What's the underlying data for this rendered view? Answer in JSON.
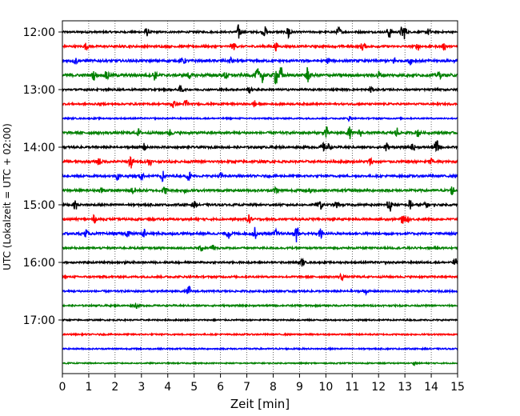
{
  "chart_data": {
    "type": "line",
    "title": "",
    "xlabel": "Zeit  [min]",
    "ylabel": "UTC (Lokalzeit = UTC + 02:00)",
    "xlim": [
      0,
      15
    ],
    "x_ticks": [
      "0",
      "1",
      "2",
      "3",
      "4",
      "5",
      "6",
      "7",
      "8",
      "9",
      "10",
      "11",
      "12",
      "13",
      "14",
      "15"
    ],
    "y_ticks": [
      "12:00",
      "13:00",
      "14:00",
      "15:00",
      "16:00",
      "17:00"
    ],
    "grid": "vertical dotted",
    "trace_interval_min": 15,
    "trace_colors": [
      "#000000",
      "#ff0000",
      "#0000ff",
      "#008000"
    ],
    "series": [
      {
        "start": "12:00",
        "color": "#000000",
        "noise": 0.08,
        "events": [
          [
            3.2,
            0.35
          ],
          [
            6.7,
            0.7
          ],
          [
            7.7,
            0.45
          ],
          [
            8.6,
            0.9
          ],
          [
            10.5,
            0.45
          ],
          [
            12.4,
            0.6
          ],
          [
            12.9,
            0.5
          ],
          [
            13.0,
            0.5
          ],
          [
            13.9,
            0.3
          ]
        ]
      },
      {
        "start": "12:15",
        "color": "#ff0000",
        "noise": 0.09,
        "events": [
          [
            0.9,
            0.3
          ],
          [
            6.5,
            0.3
          ],
          [
            8.1,
            0.35
          ],
          [
            11.4,
            0.4
          ],
          [
            13.5,
            0.3
          ],
          [
            14.5,
            0.3
          ]
        ]
      },
      {
        "start": "12:30",
        "color": "#0000ff",
        "noise": 0.1,
        "events": [
          [
            0.5,
            0.3
          ],
          [
            4.6,
            0.3
          ],
          [
            6.4,
            0.3
          ],
          [
            10.1,
            0.3
          ],
          [
            12.6,
            0.3
          ],
          [
            13.2,
            0.3
          ]
        ]
      },
      {
        "start": "12:45",
        "color": "#008000",
        "noise": 0.12,
        "events": [
          [
            1.2,
            0.4
          ],
          [
            1.7,
            0.5
          ],
          [
            3.5,
            0.4
          ],
          [
            4.8,
            0.3
          ],
          [
            6.2,
            0.35
          ],
          [
            7.4,
            0.6
          ],
          [
            7.6,
            0.6
          ],
          [
            8.1,
            0.8
          ],
          [
            8.3,
            0.7
          ],
          [
            9.3,
            0.7
          ],
          [
            12.0,
            0.35
          ],
          [
            14.3,
            0.3
          ]
        ]
      },
      {
        "start": "13:00",
        "color": "#000000",
        "noise": 0.08,
        "events": [
          [
            4.5,
            0.35
          ],
          [
            7.1,
            0.3
          ],
          [
            11.7,
            0.3
          ]
        ]
      },
      {
        "start": "13:15",
        "color": "#ff0000",
        "noise": 0.08,
        "events": [
          [
            4.2,
            0.4
          ],
          [
            4.7,
            0.5
          ],
          [
            7.3,
            0.3
          ]
        ]
      },
      {
        "start": "13:30",
        "color": "#0000ff",
        "noise": 0.06,
        "events": [
          [
            10.9,
            0.2
          ]
        ]
      },
      {
        "start": "13:45",
        "color": "#008000",
        "noise": 0.1,
        "events": [
          [
            2.9,
            0.3
          ],
          [
            4.1,
            0.3
          ],
          [
            10.0,
            0.55
          ],
          [
            10.9,
            0.5
          ],
          [
            11.3,
            0.3
          ],
          [
            12.7,
            0.45
          ],
          [
            13.5,
            0.35
          ]
        ]
      },
      {
        "start": "14:00",
        "color": "#000000",
        "noise": 0.09,
        "events": [
          [
            3.1,
            0.3
          ],
          [
            9.9,
            0.35
          ],
          [
            10.1,
            0.3
          ],
          [
            12.3,
            0.4
          ],
          [
            13.3,
            0.35
          ],
          [
            14.2,
            0.7
          ]
        ]
      },
      {
        "start": "14:15",
        "color": "#ff0000",
        "noise": 0.1,
        "events": [
          [
            1.4,
            0.35
          ],
          [
            2.6,
            0.6
          ],
          [
            3.3,
            0.4
          ],
          [
            11.7,
            0.3
          ],
          [
            14.0,
            0.3
          ]
        ]
      },
      {
        "start": "14:30",
        "color": "#0000ff",
        "noise": 0.09,
        "events": [
          [
            2.1,
            0.35
          ],
          [
            3.0,
            0.35
          ],
          [
            3.8,
            0.45
          ],
          [
            4.8,
            0.45
          ],
          [
            6.0,
            0.3
          ]
        ]
      },
      {
        "start": "14:45",
        "color": "#008000",
        "noise": 0.1,
        "events": [
          [
            1.5,
            0.3
          ],
          [
            2.7,
            0.35
          ],
          [
            3.9,
            0.3
          ],
          [
            4.7,
            0.3
          ],
          [
            8.1,
            0.35
          ],
          [
            9.4,
            0.3
          ],
          [
            14.8,
            0.4
          ]
        ]
      },
      {
        "start": "15:00",
        "color": "#000000",
        "noise": 0.09,
        "events": [
          [
            0.5,
            0.45
          ],
          [
            5.0,
            0.3
          ],
          [
            9.8,
            0.35
          ],
          [
            10.4,
            0.3
          ],
          [
            12.4,
            0.9
          ],
          [
            13.2,
            0.5
          ],
          [
            13.8,
            0.35
          ]
        ]
      },
      {
        "start": "15:15",
        "color": "#ff0000",
        "noise": 0.09,
        "events": [
          [
            1.2,
            0.3
          ],
          [
            7.1,
            0.4
          ],
          [
            12.9,
            0.35
          ],
          [
            13.1,
            0.3
          ]
        ]
      },
      {
        "start": "15:30",
        "color": "#0000ff",
        "noise": 0.1,
        "events": [
          [
            0.9,
            0.3
          ],
          [
            2.5,
            0.35
          ],
          [
            3.1,
            0.45
          ],
          [
            6.3,
            0.4
          ],
          [
            7.3,
            0.5
          ],
          [
            8.1,
            0.3
          ],
          [
            8.9,
            0.8
          ],
          [
            9.8,
            0.4
          ]
        ]
      },
      {
        "start": "15:45",
        "color": "#008000",
        "noise": 0.08,
        "events": [
          [
            5.3,
            0.3
          ],
          [
            5.7,
            0.3
          ]
        ]
      },
      {
        "start": "16:00",
        "color": "#000000",
        "noise": 0.08,
        "events": [
          [
            9.1,
            0.3
          ],
          [
            14.9,
            0.4
          ]
        ]
      },
      {
        "start": "16:15",
        "color": "#ff0000",
        "noise": 0.08,
        "events": [
          [
            10.6,
            0.3
          ]
        ]
      },
      {
        "start": "16:30",
        "color": "#0000ff",
        "noise": 0.08,
        "events": [
          [
            4.8,
            0.45
          ],
          [
            11.5,
            0.25
          ]
        ]
      },
      {
        "start": "16:45",
        "color": "#008000",
        "noise": 0.07,
        "events": [
          [
            2.8,
            0.2
          ]
        ]
      },
      {
        "start": "17:00",
        "color": "#000000",
        "noise": 0.06,
        "events": []
      },
      {
        "start": "17:15",
        "color": "#ff0000",
        "noise": 0.06,
        "events": []
      },
      {
        "start": "17:30",
        "color": "#0000ff",
        "noise": 0.06,
        "events": []
      },
      {
        "start": "17:45",
        "color": "#008000",
        "noise": 0.05,
        "events": [
          [
            13.4,
            0.2
          ]
        ]
      }
    ]
  }
}
